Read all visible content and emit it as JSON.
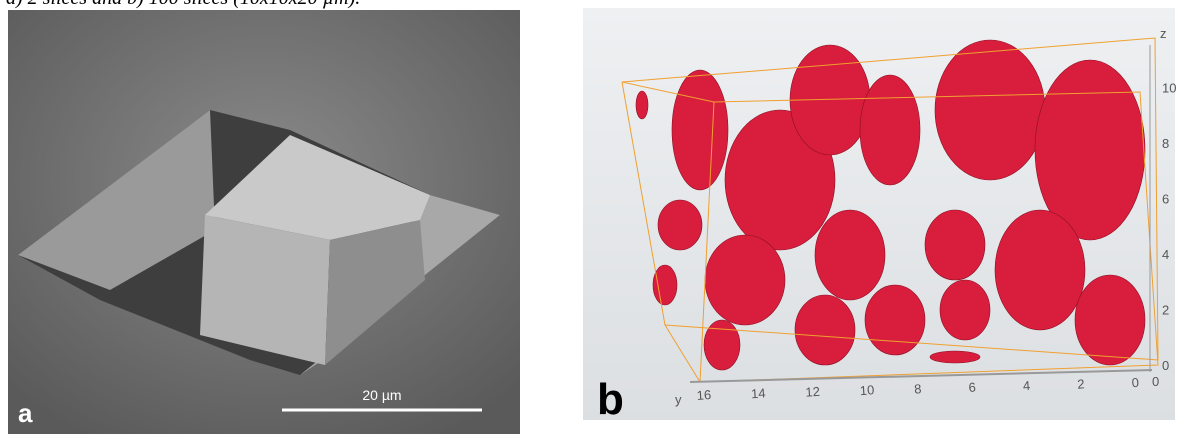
{
  "caption": "a) 2 slices and b) 100 slices (10x10x20 µm).",
  "panel_a": {
    "label": "a",
    "scale_bar": "20 µm"
  },
  "panel_b": {
    "label": "b",
    "z_axis": {
      "label": "z",
      "ticks": [
        "0",
        "2",
        "4",
        "6",
        "8",
        "10"
      ]
    },
    "y_axis": {
      "label": "y",
      "ticks": [
        "16",
        "14",
        "12",
        "10",
        "8",
        "6",
        "4",
        "2",
        "0"
      ]
    },
    "x_axis": {
      "ticks": [
        "0"
      ]
    }
  }
}
